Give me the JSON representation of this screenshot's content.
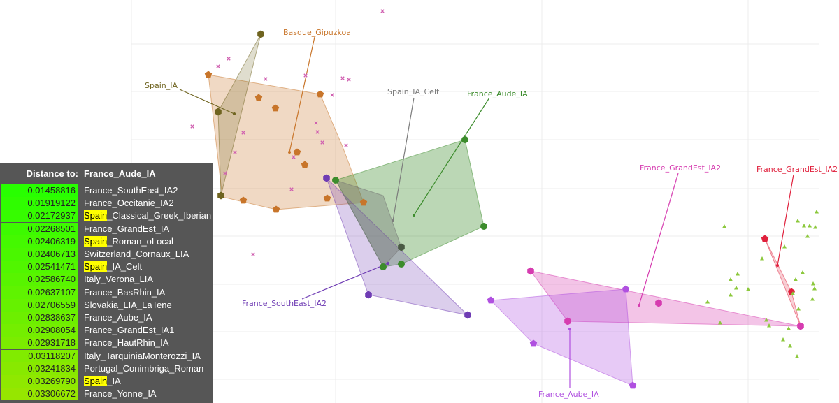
{
  "colors": {
    "spain_ia": "#6f6420",
    "basque": "#c8752a",
    "spain_ia_celt": "#7c7c7c",
    "france_aude": "#3c8c2c",
    "france_southeast": "#6f3cb4",
    "france_grandest_ia2_pink": "#d63cb0",
    "france_grandest_ia2_red": "#e0203c",
    "france_aube": "#b050e0",
    "misc_x": "#d060b0",
    "misc_tri": "#8cc83c",
    "panel_bg": "#565656",
    "highlight": "#ffff00"
  },
  "chart_data": {
    "type": "scatter",
    "title": "",
    "xlabel": "",
    "ylabel": "",
    "grid": true,
    "labels": {
      "basque": "Basque_Gipuzkoa",
      "spain_ia": "Spain_IA",
      "spain_ia_celt": "Spain_IA_Celt",
      "france_aude": "France_Aude_IA",
      "france_grandest_a": "France_GrandEst_IA2",
      "france_grandest_b": "France_GrandEst_IA2",
      "france_southeast": "France_SouthEast_IA2",
      "france_aube": "France_Aube_IA"
    }
  },
  "distance_panel": {
    "header_label": "Distance to:",
    "target": "France_Aude_IA",
    "rows": [
      {
        "value": "0.01458816",
        "hl": "",
        "name": "France_SouthEast_IA2"
      },
      {
        "value": "0.01919122",
        "hl": "",
        "name": "France_Occitanie_IA2"
      },
      {
        "value": "0.02172937",
        "hl": "Spain",
        "name": "_Classical_Greek_Iberian"
      },
      {
        "value": "0.02268501",
        "hl": "",
        "name": "France_GrandEst_IA"
      },
      {
        "value": "0.02406319",
        "hl": "Spain",
        "name": "_Roman_oLocal"
      },
      {
        "value": "0.02406713",
        "hl": "",
        "name": "Switzerland_Cornaux_LIA"
      },
      {
        "value": "0.02541471",
        "hl": "Spain",
        "name": "_IA_Celt"
      },
      {
        "value": "0.02586740",
        "hl": "",
        "name": "Italy_Verona_LIA"
      },
      {
        "value": "0.02637107",
        "hl": "",
        "name": "France_BasRhin_IA"
      },
      {
        "value": "0.02706559",
        "hl": "",
        "name": "Slovakia_LIA_LaTene"
      },
      {
        "value": "0.02838637",
        "hl": "",
        "name": "France_Aube_IA"
      },
      {
        "value": "0.02908054",
        "hl": "",
        "name": "France_GrandEst_IA1"
      },
      {
        "value": "0.02931718",
        "hl": "",
        "name": "France_HautRhin_IA"
      },
      {
        "value": "0.03118207",
        "hl": "",
        "name": "Italy_TarquiniaMonterozzi_IA"
      },
      {
        "value": "0.03241834",
        "hl": "",
        "name": "Portugal_Conimbriga_Roman"
      },
      {
        "value": "0.03269790",
        "hl": "Spain",
        "name": "_IA"
      },
      {
        "value": "0.03306672",
        "hl": "",
        "name": "France_Yonne_IA"
      }
    ]
  }
}
